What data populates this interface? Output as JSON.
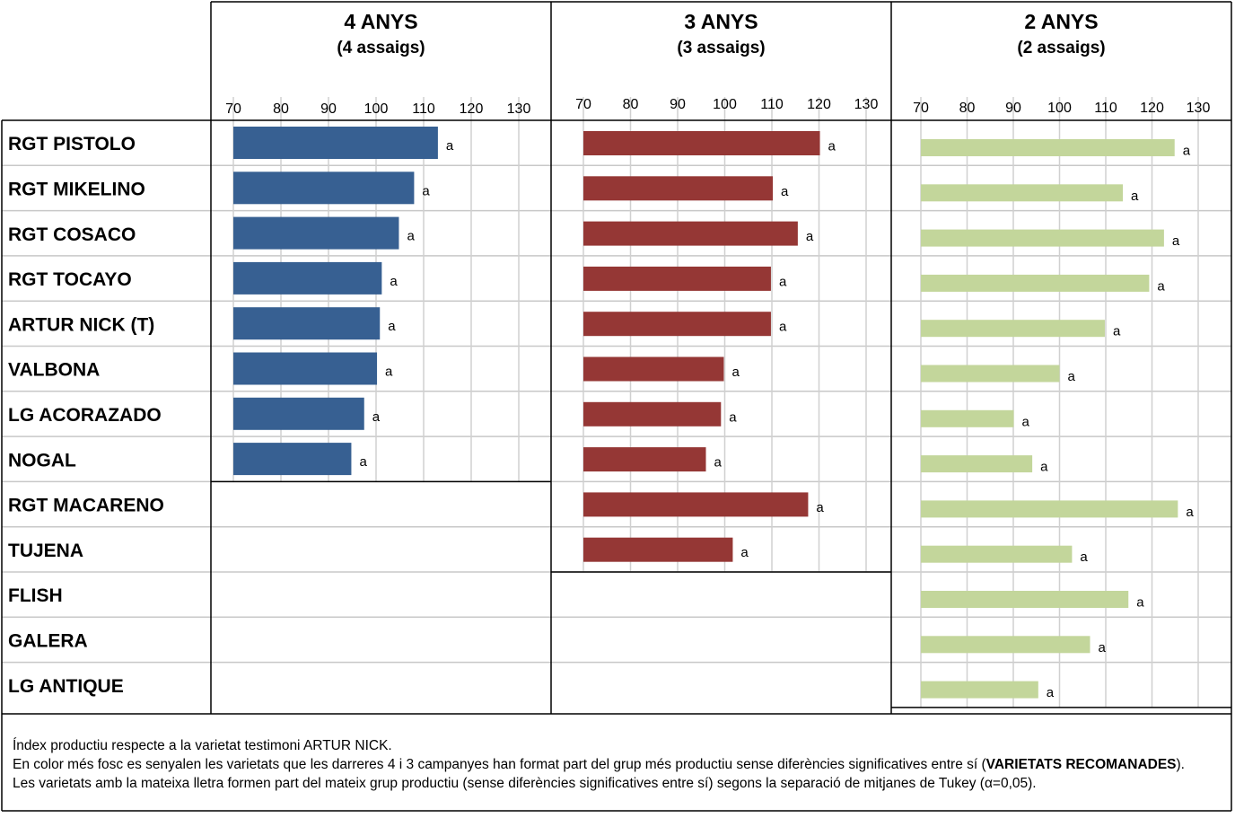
{
  "chart_data": {
    "type": "bar",
    "panels": [
      {
        "title": "4 ANYS",
        "subtitle": "(4 assaigs)",
        "series_color": "#376092",
        "xlim": [
          70,
          130
        ],
        "ticks": [
          70,
          80,
          90,
          100,
          110,
          120,
          130
        ],
        "data": [
          {
            "variety": "RGT PISTOLO",
            "value": 113,
            "group": "a"
          },
          {
            "variety": "RGT MIKELINO",
            "value": 108,
            "group": "a"
          },
          {
            "variety": "RGT COSACO",
            "value": 104.8,
            "group": "a"
          },
          {
            "variety": "RGT TOCAYO",
            "value": 101.2,
            "group": "a"
          },
          {
            "variety": "ARTUR NICK (T)",
            "value": 100.8,
            "group": "a"
          },
          {
            "variety": "VALBONA",
            "value": 100.2,
            "group": "a"
          },
          {
            "variety": "LG ACORAZADO",
            "value": 97.5,
            "group": "a"
          },
          {
            "variety": "NOGAL",
            "value": 94.8,
            "group": "a"
          }
        ]
      },
      {
        "title": "3 ANYS",
        "subtitle": "(3 assaigs)",
        "series_color": "#953735",
        "xlim": [
          70,
          130
        ],
        "ticks": [
          70,
          80,
          90,
          100,
          110,
          120,
          130
        ],
        "data": [
          {
            "variety": "RGT PISTOLO",
            "value": 120.2,
            "group": "a"
          },
          {
            "variety": "RGT MIKELINO",
            "value": 110.2,
            "group": "a"
          },
          {
            "variety": "RGT COSACO",
            "value": 115.5,
            "group": "a"
          },
          {
            "variety": "RGT TOCAYO",
            "value": 109.8,
            "group": "a"
          },
          {
            "variety": "ARTUR NICK (T)",
            "value": 109.8,
            "group": "a"
          },
          {
            "variety": "VALBONA",
            "value": 99.8,
            "group": "a"
          },
          {
            "variety": "LG ACORAZADO",
            "value": 99.2,
            "group": "a"
          },
          {
            "variety": "NOGAL",
            "value": 96,
            "group": "a"
          },
          {
            "variety": "RGT MACARENO",
            "value": 117.7,
            "group": "a"
          },
          {
            "variety": "TUJENA",
            "value": 101.7,
            "group": "a"
          }
        ]
      },
      {
        "title": "2 ANYS",
        "subtitle": "(2 assaigs)",
        "series_color": "#C3D69B",
        "xlim": [
          70,
          130
        ],
        "ticks": [
          70,
          80,
          90,
          100,
          110,
          120,
          130
        ],
        "data": [
          {
            "variety": "RGT PISTOLO",
            "value": 124.9,
            "group": "a"
          },
          {
            "variety": "RGT MIKELINO",
            "value": 113.7,
            "group": "a"
          },
          {
            "variety": "RGT COSACO",
            "value": 122.6,
            "group": "a"
          },
          {
            "variety": "RGT TOCAYO",
            "value": 119.4,
            "group": "a"
          },
          {
            "variety": "ARTUR NICK (T)",
            "value": 109.8,
            "group": "a"
          },
          {
            "variety": "VALBONA",
            "value": 100,
            "group": "a"
          },
          {
            "variety": "LG ACORAZADO",
            "value": 90.1,
            "group": "a"
          },
          {
            "variety": "NOGAL",
            "value": 94.1,
            "group": "a"
          },
          {
            "variety": "RGT MACARENO",
            "value": 125.6,
            "group": "a"
          },
          {
            "variety": "TUJENA",
            "value": 102.7,
            "group": "a"
          },
          {
            "variety": "FLISH",
            "value": 114.9,
            "group": "a"
          },
          {
            "variety": "GALERA",
            "value": 106.6,
            "group": "a"
          },
          {
            "variety": "LG ANTIQUE",
            "value": 95.4,
            "group": "a"
          }
        ]
      }
    ]
  },
  "varieties": [
    "RGT PISTOLO",
    "RGT MIKELINO",
    "RGT COSACO",
    "RGT TOCAYO",
    "ARTUR NICK (T)",
    "VALBONA",
    "LG ACORAZADO",
    "NOGAL",
    "RGT MACARENO",
    "TUJENA",
    "FLISH",
    "GALERA",
    "LG ANTIQUE"
  ],
  "footnote": {
    "line1": "Índex productiu respecte a la varietat testimoni ARTUR NICK.",
    "line2_start": "En color més fosc es senyalen les varietats que les darreres 4 i 3 campanyes han format part del grup més productiu sense diferències significatives entre sí (",
    "line2_bold": "VARIETATS RECOMANADES",
    "line2_end": ").",
    "line3": "Les varietats amb la mateixa lletra formen part del mateix grup productiu (sense diferències significatives entre sí) segons la separació de mitjanes de Tukey (α=0,05)."
  }
}
